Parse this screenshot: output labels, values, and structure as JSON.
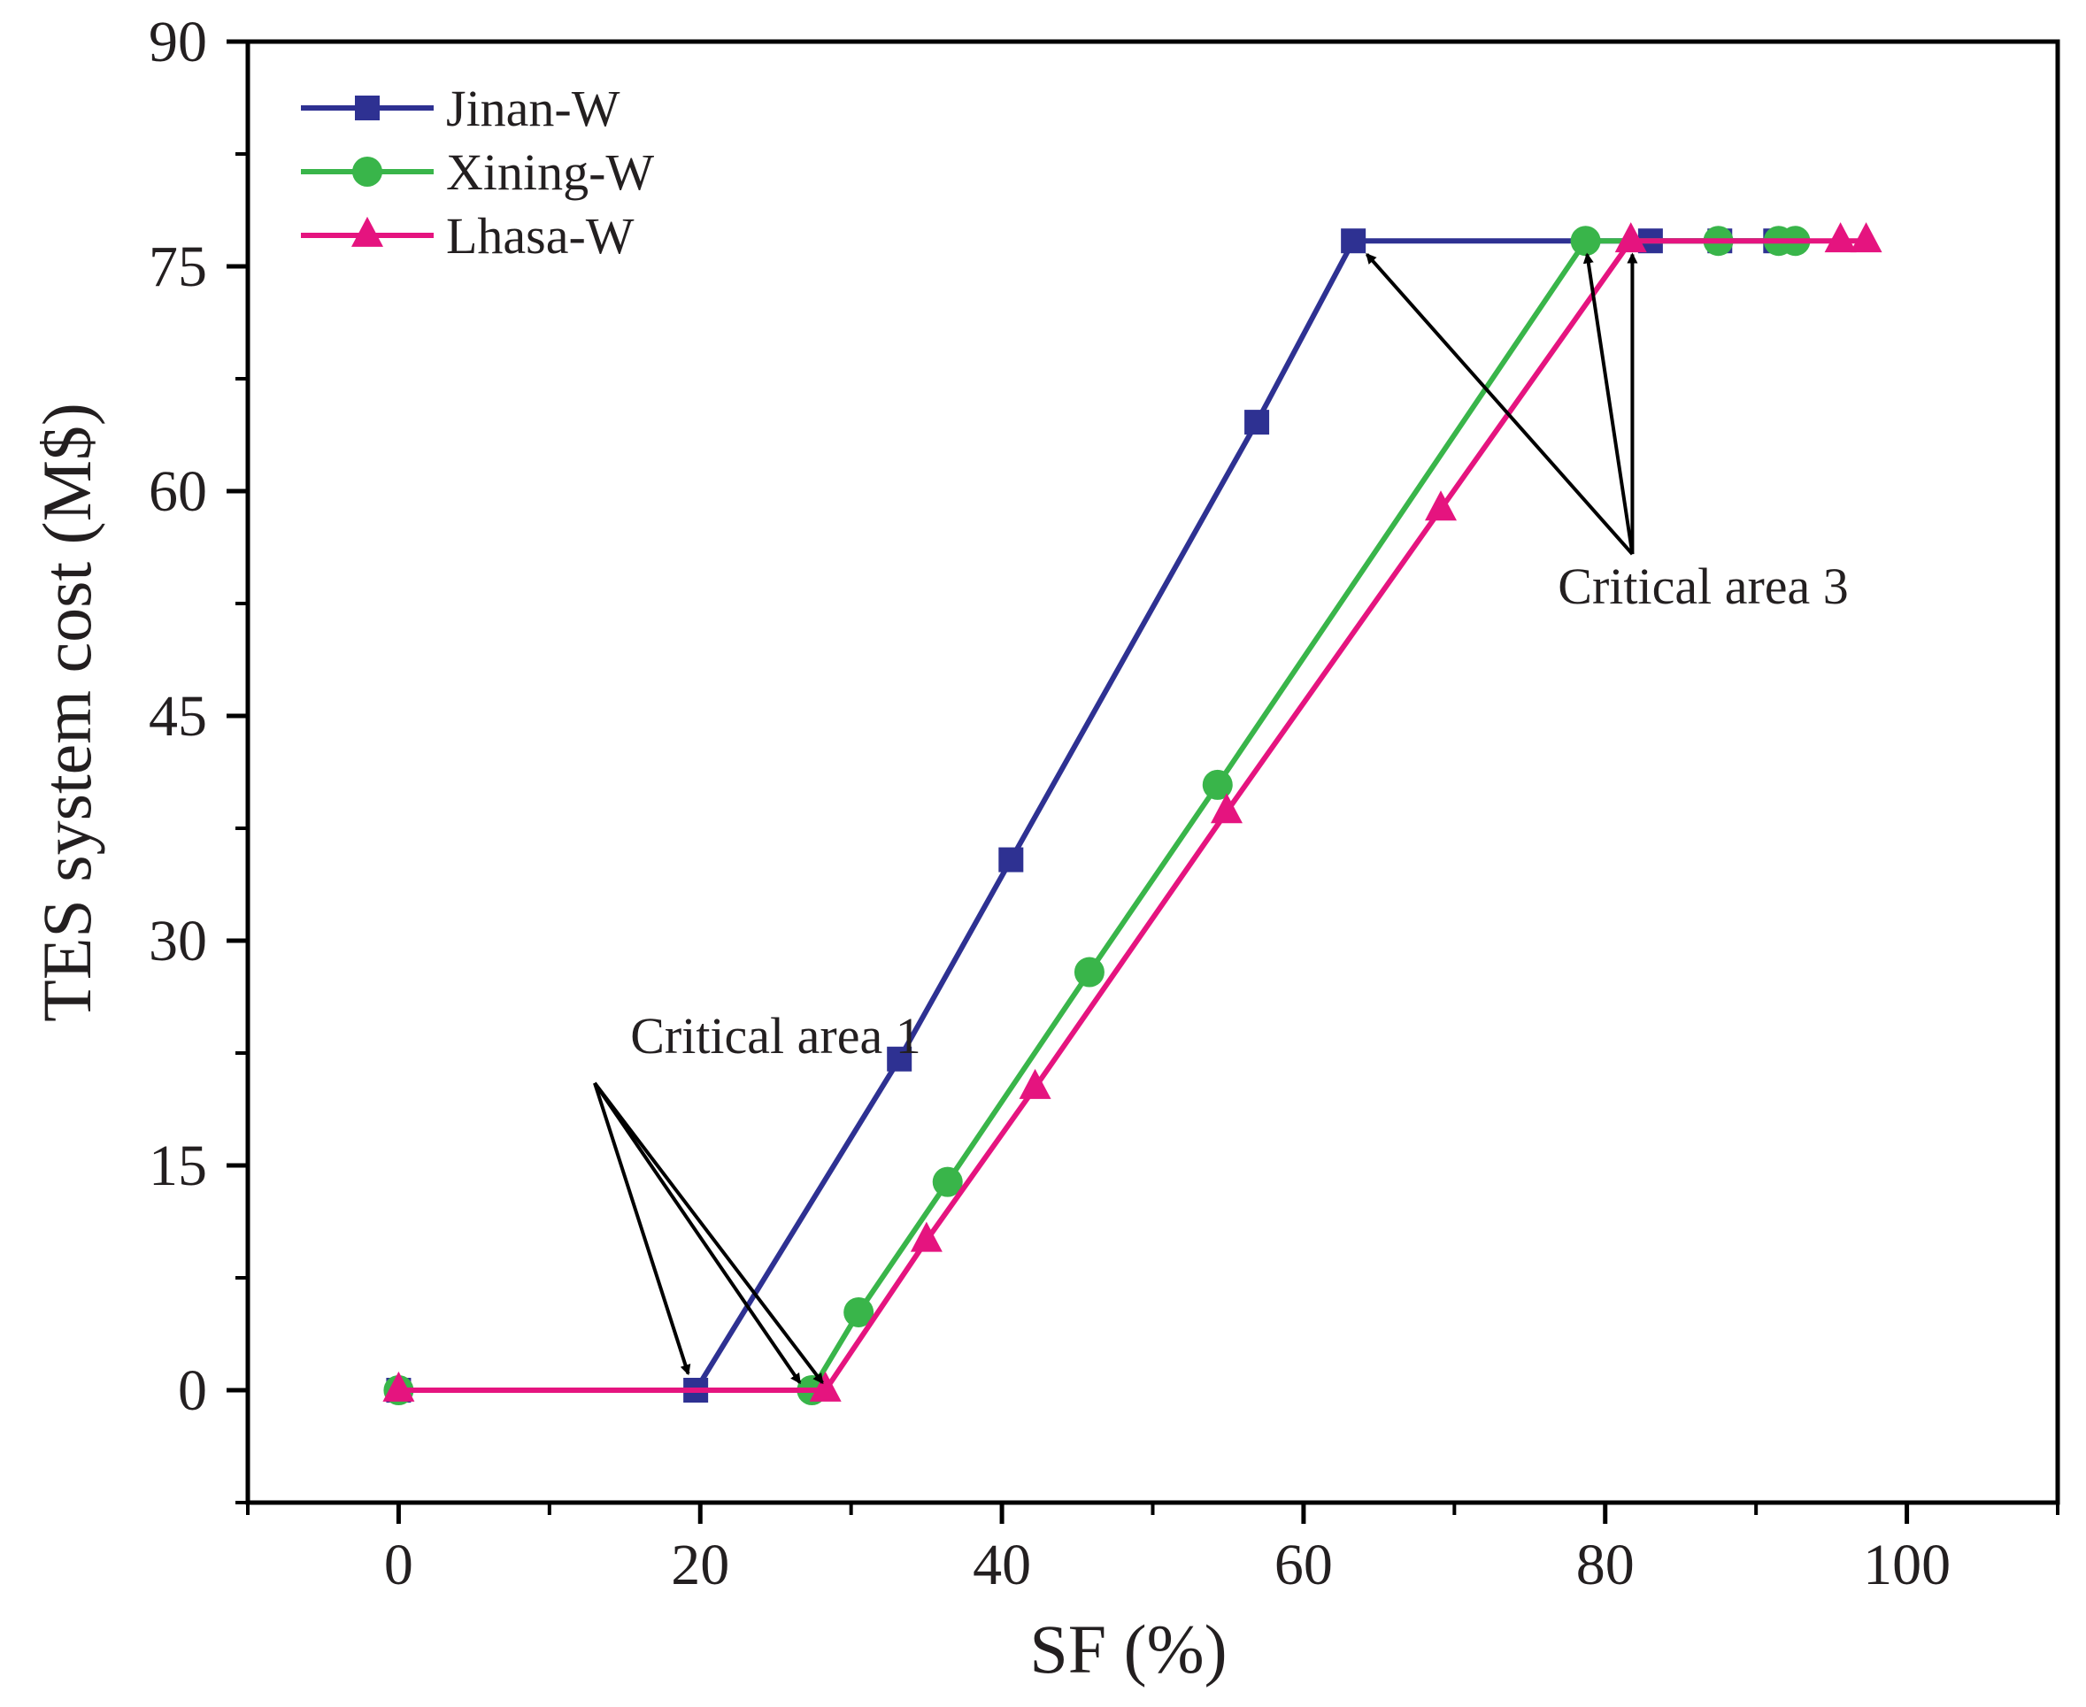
{
  "chart_data": {
    "type": "line",
    "title": "",
    "xlabel": "SF (%)",
    "ylabel": "TES system cost (M$)",
    "xlim": [
      -10,
      110
    ],
    "ylim": [
      -7.5,
      90
    ],
    "xticks": [
      0,
      20,
      40,
      60,
      80,
      100
    ],
    "xtick_labels": [
      "0",
      "20",
      "40",
      "60",
      "80",
      "100"
    ],
    "yticks": [
      0,
      15,
      30,
      45,
      60,
      75,
      90
    ],
    "ytick_labels": [
      "0",
      "15",
      "30",
      "45",
      "60",
      "75",
      "90"
    ],
    "grid": false,
    "legend_position": "top-left",
    "series": [
      {
        "name": "Jinan-W",
        "color": "#2e3192",
        "marker": "square",
        "x": [
          0,
          19.7,
          33.2,
          40.6,
          56.9,
          63.3,
          83.0,
          87.6,
          91.3
        ],
        "y": [
          0,
          0,
          22.1,
          35.4,
          64.6,
          76.7,
          76.7,
          76.7,
          76.7
        ]
      },
      {
        "name": "Xining-W",
        "color": "#39b54a",
        "marker": "circle",
        "x": [
          0,
          27.4,
          30.5,
          36.4,
          45.8,
          54.3,
          78.7,
          87.5,
          91.5,
          92.6
        ],
        "y": [
          0,
          0,
          5.2,
          13.9,
          27.9,
          40.4,
          76.7,
          76.7,
          76.7,
          76.7
        ]
      },
      {
        "name": "Lhasa-W",
        "color": "#e5147f",
        "marker": "triangle",
        "x": [
          0,
          28.3,
          35.0,
          42.2,
          54.9,
          69.1,
          81.7,
          95.6,
          97.3
        ],
        "y": [
          0,
          0,
          10.0,
          20.2,
          38.6,
          58.8,
          76.7,
          76.7,
          76.7
        ]
      }
    ],
    "annotations": [
      {
        "text": "Critical area 1",
        "text_x": 25,
        "text_y": 22.5,
        "arrow_origin": [
          13,
          20.5
        ],
        "arrow_targets": [
          [
            19.2,
            1.1
          ],
          [
            26.6,
            0.5
          ],
          [
            28.1,
            0.5
          ]
        ]
      },
      {
        "text": "Critical area 3",
        "text_x": 86.5,
        "text_y": 52.5,
        "arrow_origin": [
          81.8,
          55.8
        ],
        "arrow_targets": [
          [
            64.2,
            75.8
          ],
          [
            78.8,
            75.8
          ],
          [
            81.8,
            75.8
          ]
        ]
      }
    ]
  }
}
